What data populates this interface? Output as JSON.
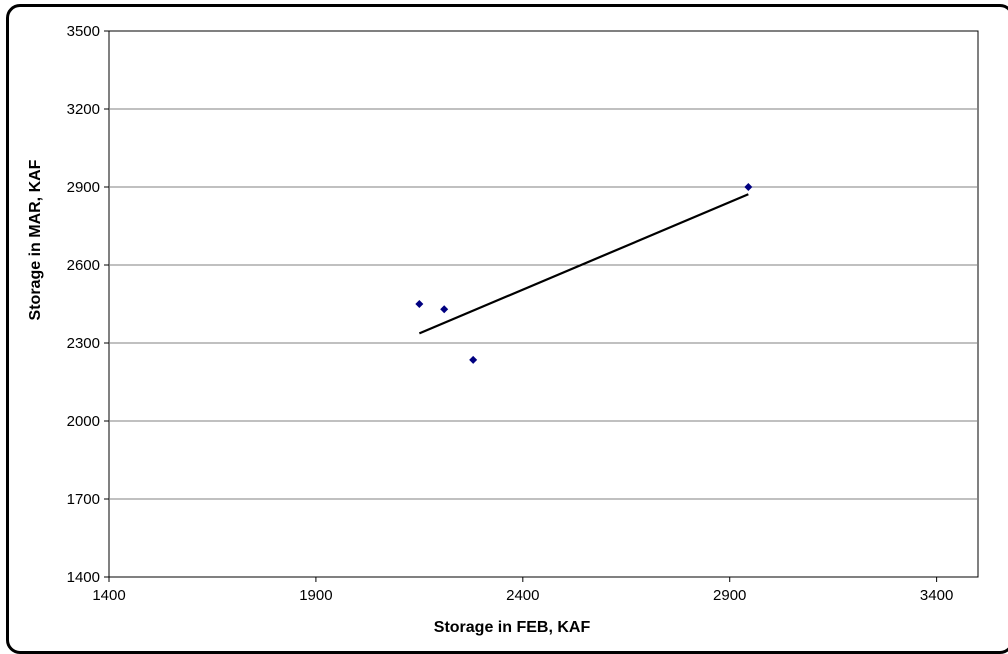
{
  "chart_data": {
    "type": "scatter",
    "title": "",
    "xlabel": "Storage in FEB, KAF",
    "ylabel": "Storage in MAR, KAF",
    "xlim": [
      1400,
      3500
    ],
    "ylim": [
      1400,
      3500
    ],
    "x_ticks": [
      1400,
      1900,
      2400,
      2900,
      3400
    ],
    "y_ticks": [
      1400,
      1700,
      2000,
      2300,
      2600,
      2900,
      3200,
      3500
    ],
    "x_tick_labels": [
      "1400",
      "1900",
      "2400",
      "2900",
      "3400"
    ],
    "y_tick_labels": [
      "1400",
      "1700",
      "2000",
      "2300",
      "2600",
      "2900",
      "3200",
      "3500"
    ],
    "grid": "horizontal",
    "points": [
      {
        "x": 2150,
        "y": 2450
      },
      {
        "x": 2210,
        "y": 2430
      },
      {
        "x": 2280,
        "y": 2235
      },
      {
        "x": 2945,
        "y": 2900
      }
    ],
    "trendline": {
      "x": [
        2150,
        2945
      ],
      "y": [
        2337,
        2872
      ]
    },
    "colors": {
      "points": "#000080",
      "trendline": "#000000",
      "grid": "#808080"
    }
  }
}
